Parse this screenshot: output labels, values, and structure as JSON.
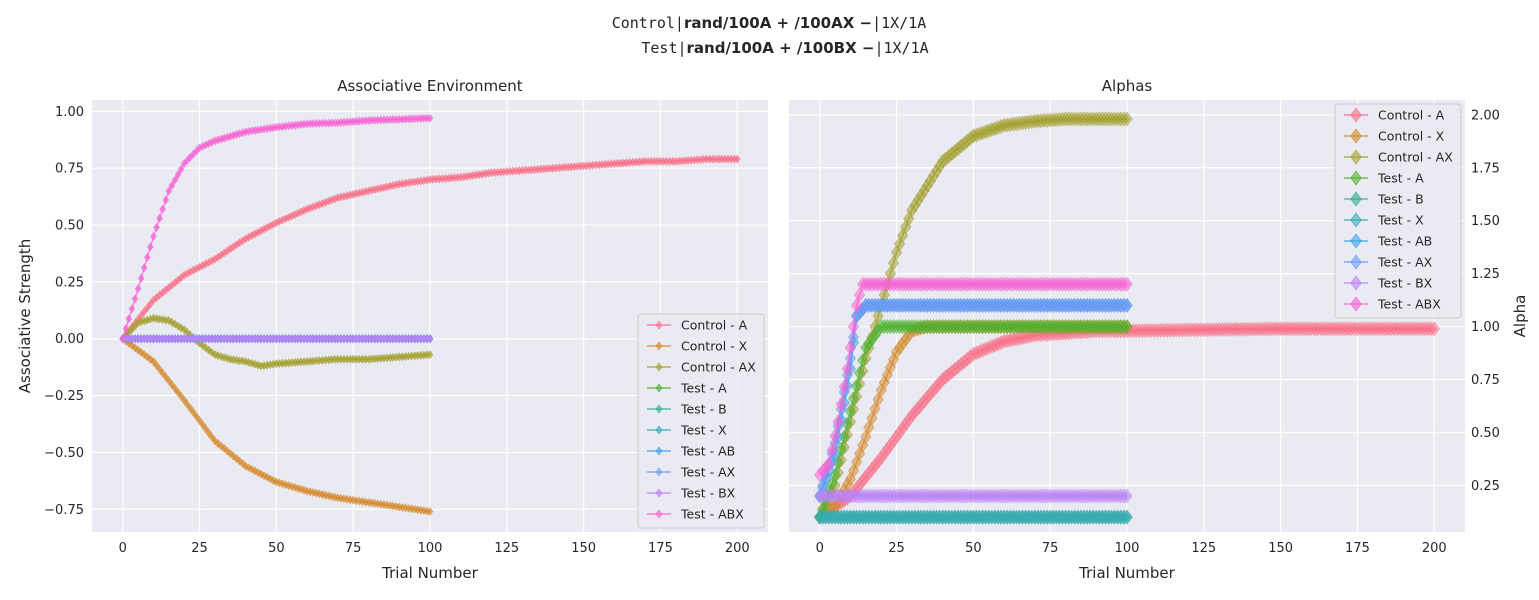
{
  "suptitle": {
    "line1_plain": "Control|",
    "line1_bold": "rand/100A + /100AX −",
    "line1_tail": "|1X/1A",
    "line2_plain": "Test|",
    "line2_bold": "rand/100A + /100BX −",
    "line2_tail": "|1X/1A"
  },
  "chart_data": [
    {
      "type": "line",
      "title": "Associative Environment",
      "xlabel": "Trial Number",
      "ylabel": "Associative Strength",
      "xlim": [
        -10,
        210
      ],
      "ylim": [
        -0.85,
        1.05
      ],
      "xticks": [
        0,
        25,
        50,
        75,
        100,
        125,
        150,
        175,
        200
      ],
      "yticks": [
        -0.75,
        -0.5,
        -0.25,
        0.0,
        0.25,
        0.5,
        0.75,
        1.0
      ],
      "ytick_labels": [
        "−0.75",
        "−0.50",
        "−0.25",
        "0.00",
        "0.25",
        "0.50",
        "0.75",
        "1.00"
      ],
      "grid": true,
      "legend_position": "lower-right",
      "marker": "diamond",
      "series": [
        {
          "name": "Control - A",
          "color": "#f77189",
          "x": [
            0,
            10,
            20,
            30,
            40,
            50,
            60,
            70,
            80,
            90,
            100,
            110,
            120,
            130,
            140,
            150,
            160,
            170,
            180,
            190,
            200
          ],
          "values": [
            0,
            0.17,
            0.28,
            0.35,
            0.44,
            0.51,
            0.57,
            0.62,
            0.65,
            0.68,
            0.7,
            0.71,
            0.73,
            0.74,
            0.75,
            0.76,
            0.77,
            0.78,
            0.78,
            0.79,
            0.79
          ]
        },
        {
          "name": "Control - X",
          "color": "#d58c32",
          "x": [
            0,
            10,
            20,
            30,
            40,
            50,
            60,
            70,
            80,
            90,
            100
          ],
          "values": [
            0,
            -0.1,
            -0.27,
            -0.45,
            -0.56,
            -0.63,
            -0.67,
            -0.7,
            -0.72,
            -0.74,
            -0.76
          ]
        },
        {
          "name": "Control - AX",
          "color": "#a4a031",
          "x": [
            0,
            5,
            10,
            15,
            20,
            25,
            30,
            35,
            40,
            45,
            50,
            60,
            70,
            80,
            90,
            100
          ],
          "values": [
            0,
            0.07,
            0.09,
            0.08,
            0.04,
            -0.02,
            -0.07,
            -0.09,
            -0.1,
            -0.12,
            -0.11,
            -0.1,
            -0.09,
            -0.09,
            -0.08,
            -0.07
          ]
        },
        {
          "name": "Test - A",
          "color": "#50b131",
          "x": [
            0,
            100
          ],
          "values": [
            0,
            0
          ]
        },
        {
          "name": "Test - B",
          "color": "#34ae91",
          "x": [
            0,
            100
          ],
          "values": [
            0,
            0
          ]
        },
        {
          "name": "Test - X",
          "color": "#37abb5",
          "x": [
            0,
            100
          ],
          "values": [
            0,
            0
          ]
        },
        {
          "name": "Test - AB",
          "color": "#3ba3ec",
          "x": [
            0,
            100
          ],
          "values": [
            0,
            0
          ]
        },
        {
          "name": "Test - AX",
          "color": "#6e9bf4",
          "x": [
            0,
            100
          ],
          "values": [
            0,
            0
          ]
        },
        {
          "name": "Test - BX",
          "color": "#bb83f4",
          "x": [
            0,
            100
          ],
          "values": [
            0,
            0
          ]
        },
        {
          "name": "Test - ABX",
          "color": "#f564d4",
          "x": [
            0,
            5,
            10,
            15,
            20,
            25,
            30,
            40,
            50,
            60,
            70,
            80,
            90,
            100
          ],
          "values": [
            0,
            0.22,
            0.45,
            0.65,
            0.77,
            0.84,
            0.87,
            0.91,
            0.93,
            0.945,
            0.95,
            0.96,
            0.965,
            0.97
          ]
        }
      ]
    },
    {
      "type": "line",
      "title": "Alphas",
      "xlabel": "Trial Number",
      "ylabel": "Alpha",
      "xlim": [
        -10,
        210
      ],
      "ylim": [
        0.03,
        2.07
      ],
      "xticks": [
        0,
        25,
        50,
        75,
        100,
        125,
        150,
        175,
        200
      ],
      "yticks": [
        0.25,
        0.5,
        0.75,
        1.0,
        1.25,
        1.5,
        1.75,
        2.0
      ],
      "ytick_labels": [
        "0.25",
        "0.50",
        "0.75",
        "1.00",
        "1.25",
        "1.50",
        "1.75",
        "2.00"
      ],
      "y_axis_side": "right",
      "grid": true,
      "legend_position": "upper-right",
      "marker": "diamond",
      "series": [
        {
          "name": "Control - A",
          "color": "#f77189",
          "x": [
            0,
            10,
            20,
            30,
            40,
            50,
            60,
            70,
            80,
            90,
            100,
            150,
            200
          ],
          "values": [
            0.1,
            0.2,
            0.38,
            0.58,
            0.75,
            0.87,
            0.93,
            0.96,
            0.97,
            0.98,
            0.98,
            0.99,
            0.99
          ]
        },
        {
          "name": "Control - X",
          "color": "#d58c32",
          "x": [
            0,
            5,
            10,
            15,
            20,
            25,
            30,
            35,
            40,
            60,
            80,
            100
          ],
          "values": [
            0.1,
            0.15,
            0.28,
            0.48,
            0.7,
            0.88,
            0.98,
            1.0,
            1.0,
            1.0,
            1.0,
            1.0
          ]
        },
        {
          "name": "Control - AX",
          "color": "#a4a031",
          "x": [
            0,
            5,
            10,
            15,
            20,
            25,
            30,
            40,
            50,
            60,
            70,
            80,
            90,
            100
          ],
          "values": [
            0.1,
            0.25,
            0.55,
            0.85,
            1.1,
            1.35,
            1.55,
            1.78,
            1.9,
            1.95,
            1.97,
            1.98,
            1.98,
            1.98
          ]
        },
        {
          "name": "Test - A",
          "color": "#50b131",
          "x": [
            0,
            5,
            10,
            15,
            20,
            30,
            40,
            60,
            80,
            100
          ],
          "values": [
            0.1,
            0.3,
            0.6,
            0.9,
            1.0,
            1.0,
            1.0,
            1.0,
            1.0,
            1.0
          ]
        },
        {
          "name": "Test - B",
          "color": "#34ae91",
          "x": [
            0,
            100
          ],
          "values": [
            0.1,
            0.1
          ]
        },
        {
          "name": "Test - X",
          "color": "#37abb5",
          "x": [
            0,
            100
          ],
          "values": [
            0.1,
            0.1
          ]
        },
        {
          "name": "Test - AB",
          "color": "#3ba3ec",
          "x": [
            0,
            5,
            10,
            12,
            15,
            20,
            40,
            60,
            80,
            100
          ],
          "values": [
            0.2,
            0.4,
            0.8,
            1.05,
            1.1,
            1.1,
            1.1,
            1.1,
            1.1,
            1.1
          ]
        },
        {
          "name": "Test - AX",
          "color": "#6e9bf4",
          "x": [
            0,
            5,
            10,
            12,
            15,
            20,
            40,
            60,
            80,
            100
          ],
          "values": [
            0.2,
            0.45,
            0.85,
            1.05,
            1.1,
            1.1,
            1.1,
            1.1,
            1.1,
            1.1
          ]
        },
        {
          "name": "Test - BX",
          "color": "#bb83f4",
          "x": [
            0,
            100
          ],
          "values": [
            0.2,
            0.2
          ]
        },
        {
          "name": "Test - ABX",
          "color": "#f564d4",
          "x": [
            0,
            3,
            6,
            9,
            12,
            14,
            20,
            40,
            60,
            80,
            100
          ],
          "values": [
            0.3,
            0.35,
            0.55,
            0.8,
            1.1,
            1.2,
            1.2,
            1.2,
            1.2,
            1.2,
            1.2
          ]
        }
      ]
    }
  ]
}
